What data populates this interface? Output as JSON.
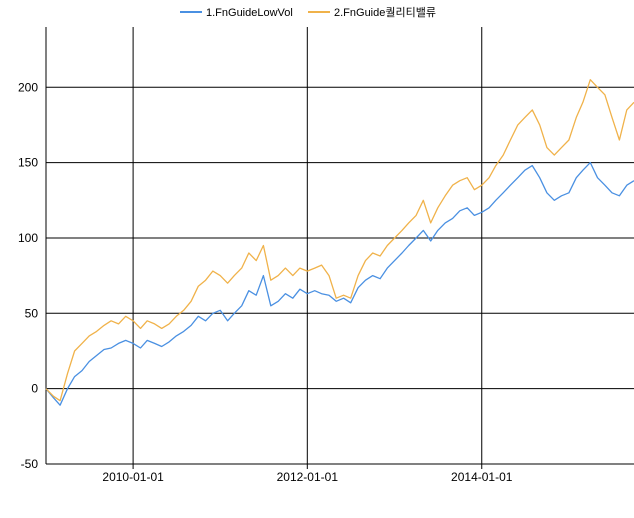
{
  "chart_data": {
    "type": "line",
    "title": "",
    "xlabel": "",
    "ylabel": "",
    "x_range": [
      "2009-01-01",
      "2015-10-01"
    ],
    "ylim": [
      -50,
      240
    ],
    "y_ticks": [
      -50,
      0,
      50,
      100,
      150,
      200
    ],
    "x_ticks": [
      "2010-01-01",
      "2012-01-01",
      "2014-01-01"
    ],
    "grid": true,
    "legend_position": "top",
    "series": [
      {
        "name": "1.FnGuideLowVol",
        "color": "#4a90e2",
        "points": [
          [
            "2009-01-01",
            0
          ],
          [
            "2009-02-01",
            -6
          ],
          [
            "2009-03-01",
            -11
          ],
          [
            "2009-04-01",
            0
          ],
          [
            "2009-05-01",
            8
          ],
          [
            "2009-06-01",
            12
          ],
          [
            "2009-07-01",
            18
          ],
          [
            "2009-08-01",
            22
          ],
          [
            "2009-09-01",
            26
          ],
          [
            "2009-10-01",
            27
          ],
          [
            "2009-11-01",
            30
          ],
          [
            "2009-12-01",
            32
          ],
          [
            "2010-01-01",
            30
          ],
          [
            "2010-02-01",
            27
          ],
          [
            "2010-03-01",
            32
          ],
          [
            "2010-04-01",
            30
          ],
          [
            "2010-05-01",
            28
          ],
          [
            "2010-06-01",
            31
          ],
          [
            "2010-07-01",
            35
          ],
          [
            "2010-08-01",
            38
          ],
          [
            "2010-09-01",
            42
          ],
          [
            "2010-10-01",
            48
          ],
          [
            "2010-11-01",
            45
          ],
          [
            "2010-12-01",
            50
          ],
          [
            "2011-01-01",
            52
          ],
          [
            "2011-02-01",
            45
          ],
          [
            "2011-03-01",
            50
          ],
          [
            "2011-04-01",
            55
          ],
          [
            "2011-05-01",
            65
          ],
          [
            "2011-06-01",
            62
          ],
          [
            "2011-07-01",
            75
          ],
          [
            "2011-08-01",
            55
          ],
          [
            "2011-09-01",
            58
          ],
          [
            "2011-10-01",
            63
          ],
          [
            "2011-11-01",
            60
          ],
          [
            "2011-12-01",
            66
          ],
          [
            "2012-01-01",
            63
          ],
          [
            "2012-02-01",
            65
          ],
          [
            "2012-03-01",
            63
          ],
          [
            "2012-04-01",
            62
          ],
          [
            "2012-05-01",
            58
          ],
          [
            "2012-06-01",
            60
          ],
          [
            "2012-07-01",
            57
          ],
          [
            "2012-08-01",
            67
          ],
          [
            "2012-09-01",
            72
          ],
          [
            "2012-10-01",
            75
          ],
          [
            "2012-11-01",
            73
          ],
          [
            "2012-12-01",
            80
          ],
          [
            "2013-01-01",
            85
          ],
          [
            "2013-02-01",
            90
          ],
          [
            "2013-03-01",
            95
          ],
          [
            "2013-04-01",
            100
          ],
          [
            "2013-05-01",
            105
          ],
          [
            "2013-06-01",
            98
          ],
          [
            "2013-07-01",
            105
          ],
          [
            "2013-08-01",
            110
          ],
          [
            "2013-09-01",
            113
          ],
          [
            "2013-10-01",
            118
          ],
          [
            "2013-11-01",
            120
          ],
          [
            "2013-12-01",
            115
          ],
          [
            "2014-01-01",
            117
          ],
          [
            "2014-02-01",
            120
          ],
          [
            "2014-03-01",
            125
          ],
          [
            "2014-04-01",
            130
          ],
          [
            "2014-05-01",
            135
          ],
          [
            "2014-06-01",
            140
          ],
          [
            "2014-07-01",
            145
          ],
          [
            "2014-08-01",
            148
          ],
          [
            "2014-09-01",
            140
          ],
          [
            "2014-10-01",
            130
          ],
          [
            "2014-11-01",
            125
          ],
          [
            "2014-12-01",
            128
          ],
          [
            "2015-01-01",
            130
          ],
          [
            "2015-02-01",
            140
          ],
          [
            "2015-03-01",
            145
          ],
          [
            "2015-04-01",
            150
          ],
          [
            "2015-05-01",
            140
          ],
          [
            "2015-06-01",
            135
          ],
          [
            "2015-07-01",
            130
          ],
          [
            "2015-08-01",
            128
          ],
          [
            "2015-09-01",
            135
          ],
          [
            "2015-10-01",
            138
          ]
        ]
      },
      {
        "name": "2.FnGuide퀄리티밸류",
        "color": "#f0b24a",
        "points": [
          [
            "2009-01-01",
            0
          ],
          [
            "2009-02-01",
            -5
          ],
          [
            "2009-03-01",
            -8
          ],
          [
            "2009-04-01",
            10
          ],
          [
            "2009-05-01",
            25
          ],
          [
            "2009-06-01",
            30
          ],
          [
            "2009-07-01",
            35
          ],
          [
            "2009-08-01",
            38
          ],
          [
            "2009-09-01",
            42
          ],
          [
            "2009-10-01",
            45
          ],
          [
            "2009-11-01",
            43
          ],
          [
            "2009-12-01",
            48
          ],
          [
            "2010-01-01",
            45
          ],
          [
            "2010-02-01",
            40
          ],
          [
            "2010-03-01",
            45
          ],
          [
            "2010-04-01",
            43
          ],
          [
            "2010-05-01",
            40
          ],
          [
            "2010-06-01",
            43
          ],
          [
            "2010-07-01",
            48
          ],
          [
            "2010-08-01",
            52
          ],
          [
            "2010-09-01",
            58
          ],
          [
            "2010-10-01",
            68
          ],
          [
            "2010-11-01",
            72
          ],
          [
            "2010-12-01",
            78
          ],
          [
            "2011-01-01",
            75
          ],
          [
            "2011-02-01",
            70
          ],
          [
            "2011-03-01",
            75
          ],
          [
            "2011-04-01",
            80
          ],
          [
            "2011-05-01",
            90
          ],
          [
            "2011-06-01",
            85
          ],
          [
            "2011-07-01",
            95
          ],
          [
            "2011-08-01",
            72
          ],
          [
            "2011-09-01",
            75
          ],
          [
            "2011-10-01",
            80
          ],
          [
            "2011-11-01",
            75
          ],
          [
            "2011-12-01",
            80
          ],
          [
            "2012-01-01",
            78
          ],
          [
            "2012-02-01",
            80
          ],
          [
            "2012-03-01",
            82
          ],
          [
            "2012-04-01",
            75
          ],
          [
            "2012-05-01",
            60
          ],
          [
            "2012-06-01",
            62
          ],
          [
            "2012-07-01",
            60
          ],
          [
            "2012-08-01",
            75
          ],
          [
            "2012-09-01",
            85
          ],
          [
            "2012-10-01",
            90
          ],
          [
            "2012-11-01",
            88
          ],
          [
            "2012-12-01",
            95
          ],
          [
            "2013-01-01",
            100
          ],
          [
            "2013-02-01",
            105
          ],
          [
            "2013-03-01",
            110
          ],
          [
            "2013-04-01",
            115
          ],
          [
            "2013-05-01",
            125
          ],
          [
            "2013-06-01",
            110
          ],
          [
            "2013-07-01",
            120
          ],
          [
            "2013-08-01",
            128
          ],
          [
            "2013-09-01",
            135
          ],
          [
            "2013-10-01",
            138
          ],
          [
            "2013-11-01",
            140
          ],
          [
            "2013-12-01",
            132
          ],
          [
            "2014-01-01",
            135
          ],
          [
            "2014-02-01",
            140
          ],
          [
            "2014-03-01",
            148
          ],
          [
            "2014-04-01",
            155
          ],
          [
            "2014-05-01",
            165
          ],
          [
            "2014-06-01",
            175
          ],
          [
            "2014-07-01",
            180
          ],
          [
            "2014-08-01",
            185
          ],
          [
            "2014-09-01",
            175
          ],
          [
            "2014-10-01",
            160
          ],
          [
            "2014-11-01",
            155
          ],
          [
            "2014-12-01",
            160
          ],
          [
            "2015-01-01",
            165
          ],
          [
            "2015-02-01",
            180
          ],
          [
            "2015-03-01",
            190
          ],
          [
            "2015-04-01",
            205
          ],
          [
            "2015-05-01",
            200
          ],
          [
            "2015-06-01",
            195
          ],
          [
            "2015-07-01",
            180
          ],
          [
            "2015-08-01",
            165
          ],
          [
            "2015-09-01",
            185
          ],
          [
            "2015-10-01",
            190
          ]
        ]
      }
    ]
  }
}
